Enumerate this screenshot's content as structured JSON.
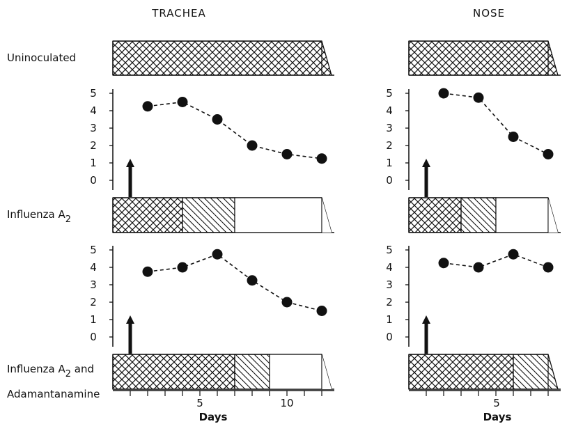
{
  "columns": [
    {
      "title": "TRACHEA"
    },
    {
      "title": "NOSE"
    }
  ],
  "rows": [
    {
      "label": "Uninoculated"
    },
    {
      "label": "Influenza A",
      "subscript": "2"
    },
    {
      "label_line1": "Influenza A",
      "subscript": "2",
      "label_line1_suffix": " and",
      "label_line2": "Adamantanamine"
    }
  ],
  "x_axis": {
    "trachea_ticks": [
      "5",
      "10"
    ],
    "nose_ticks": [
      "5"
    ],
    "label": "Days"
  },
  "chart_data": [
    {
      "type": "line",
      "panel": "trachea-influenza",
      "x": [
        2,
        4,
        6,
        8,
        10,
        12
      ],
      "y": [
        4.25,
        4.5,
        3.5,
        2.0,
        1.5,
        1.25
      ],
      "yticks": [
        "5",
        "4",
        "3",
        "2",
        "1",
        "0"
      ],
      "ylim": [
        0,
        5
      ],
      "inoculation_day": 1,
      "stages": [
        {
          "pattern": "crosshatch",
          "from": 0,
          "to": 4
        },
        {
          "pattern": "diagonal",
          "from": 4,
          "to": 7
        },
        {
          "pattern": "blank",
          "from": 7,
          "to": 12
        }
      ]
    },
    {
      "type": "line",
      "panel": "nose-influenza",
      "x": [
        2,
        4,
        6,
        8
      ],
      "y": [
        5.0,
        4.75,
        2.5,
        1.5
      ],
      "yticks": [
        "5",
        "4",
        "3",
        "2",
        "1",
        "0"
      ],
      "ylim": [
        0,
        5
      ],
      "inoculation_day": 1,
      "stages": [
        {
          "pattern": "crosshatch",
          "from": 0,
          "to": 3
        },
        {
          "pattern": "diagonal",
          "from": 3,
          "to": 5
        },
        {
          "pattern": "blank",
          "from": 5,
          "to": 8
        }
      ]
    },
    {
      "type": "line",
      "panel": "trachea-adamantanamine",
      "x": [
        2,
        4,
        6,
        8,
        10,
        12
      ],
      "y": [
        3.75,
        4.0,
        4.75,
        3.25,
        2.0,
        1.5
      ],
      "yticks": [
        "5",
        "4",
        "3",
        "2",
        "1",
        "0"
      ],
      "ylim": [
        0,
        5
      ],
      "inoculation_day": 1,
      "stages": [
        {
          "pattern": "crosshatch",
          "from": 0,
          "to": 7
        },
        {
          "pattern": "diagonal",
          "from": 7,
          "to": 9
        },
        {
          "pattern": "blank",
          "from": 9,
          "to": 12
        }
      ]
    },
    {
      "type": "line",
      "panel": "nose-adamantanamine",
      "x": [
        2,
        4,
        6,
        8
      ],
      "y": [
        4.25,
        4.0,
        4.75,
        4.0
      ],
      "yticks": [
        "5",
        "4",
        "3",
        "2",
        "1",
        "0"
      ],
      "ylim": [
        0,
        5
      ],
      "inoculation_day": 1,
      "stages": [
        {
          "pattern": "crosshatch",
          "from": 0,
          "to": 6
        },
        {
          "pattern": "diagonal",
          "from": 6,
          "to": 8
        }
      ]
    },
    {
      "type": "bar",
      "panel": "trachea-uninoculated",
      "stages": [
        {
          "pattern": "crosshatch",
          "from": 0,
          "to": 12
        }
      ]
    },
    {
      "type": "bar",
      "panel": "nose-uninoculated",
      "stages": [
        {
          "pattern": "crosshatch",
          "from": 0,
          "to": 8
        }
      ]
    }
  ]
}
